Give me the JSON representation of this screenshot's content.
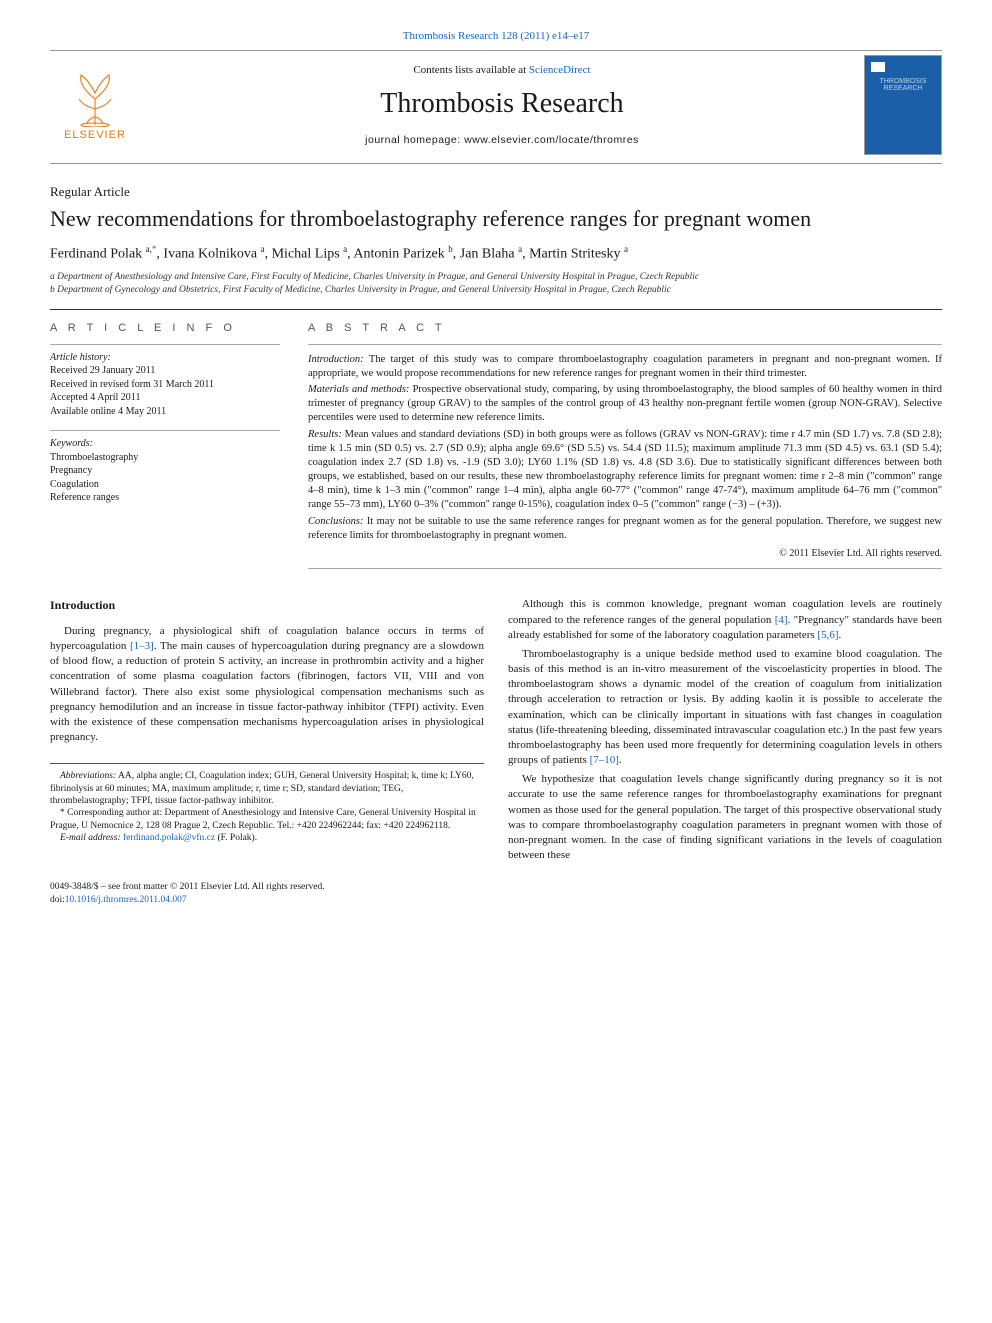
{
  "header": {
    "citation": "Thrombosis Research 128 (2011) e14–e17",
    "contents_prefix": "Contents lists available at ",
    "contents_link": "ScienceDirect",
    "journal": "Thrombosis Research",
    "homepage_prefix": "journal homepage: ",
    "homepage_url": "www.elsevier.com/locate/thromres",
    "publisher_logo_text": "ELSEVIER",
    "cover_label": "THROMBOSIS RESEARCH"
  },
  "article": {
    "type": "Regular Article",
    "title": "New recommendations for thromboelastography reference ranges for pregnant women",
    "authors_html": "Ferdinand Polak <sup>a,</sup><sup class='link'>*</sup>, Ivana Kolnikova <sup>a</sup>, Michal Lips <sup>a</sup>, Antonin Parizek <sup>b</sup>, Jan Blaha <sup>a</sup>, Martin Stritesky <sup>a</sup>",
    "affiliations": [
      "a Department of Anesthesiology and Intensive Care, First Faculty of Medicine, Charles University in Prague, and General University Hospital in Prague, Czech Republic",
      "b Department of Gynecology and Obstetrics, First Faculty of Medicine, Charles University in Prague, and General University Hospital in Prague, Czech Republic"
    ]
  },
  "info": {
    "heading": "A R T I C L E   I N F O",
    "history_label": "Article history:",
    "history": [
      "Received 29 January 2011",
      "Received in revised form 31 March 2011",
      "Accepted 4 April 2011",
      "Available online 4 May 2011"
    ],
    "keywords_label": "Keywords:",
    "keywords": [
      "Thromboelastography",
      "Pregnancy",
      "Coagulation",
      "Reference ranges"
    ]
  },
  "abstract": {
    "heading": "A B S T R A C T",
    "sections": [
      {
        "label": "Introduction:",
        "text": "The target of this study was to compare thromboelastography coagulation parameters in pregnant and non-pregnant women. If appropriate, we would propose recommendations for new reference ranges for pregnant women in their third trimester."
      },
      {
        "label": "Materials and methods:",
        "text": "Prospective observational study, comparing, by using thromboelastography, the blood samples of 60 healthy women in third trimester of pregnancy (group GRAV) to the samples of the control group of 43 healthy non-pregnant fertile women (group NON-GRAV). Selective percentiles were used to determine new reference limits."
      },
      {
        "label": "Results:",
        "text": "Mean values and standard deviations (SD) in both groups were as follows (GRAV vs NON-GRAV): time r 4.7 min (SD 1.7) vs. 7.8 (SD 2.8); time k 1.5 min (SD 0.5) vs. 2.7 (SD 0.9); alpha angle 69.6° (SD 5.5) vs. 54.4 (SD 11.5); maximum amplitude 71.3 mm (SD 4.5) vs. 63.1 (SD 5.4); coagulation index 2.7 (SD 1.8) vs. -1.9 (SD 3.0); LY60 1.1% (SD 1.8) vs. 4.8 (SD 3.6). Due to statistically significant differences between both groups, we established, based on our results, these new thromboelastography reference limits for pregnant women: time r 2–8 min (\"common\" range 4–8 min), time k 1–3 min (\"common\" range 1–4 min), alpha angle 60-77° (\"common\" range 47-74°), maximum amplitude 64–76 mm (\"common\" range 55–73 mm), LY60 0–3% (\"common\" range 0-15%), coagulation index 0–5 (\"common\" range (−3) – (+3))."
      },
      {
        "label": "Conclusions:",
        "text": "It may not be suitable to use the same reference ranges for pregnant women as for the general population. Therefore, we suggest new reference limits for thromboelastography in pregnant women."
      }
    ],
    "copyright": "© 2011 Elsevier Ltd. All rights reserved."
  },
  "body": {
    "intro_head": "Introduction",
    "paras": [
      {
        "text_pre": "During pregnancy, a physiological shift of coagulation balance occurs in terms of hypercoagulation ",
        "cite": "[1–3]",
        "text_post": ". The main causes of hypercoagulation during pregnancy are a slowdown of blood flow, a reduction of protein S activity, an increase in prothrombin activity and a higher concentration of some plasma coagulation factors (fibrinogen, factors VII, VIII and von Willebrand factor). There also exist some physiological compensation mechanisms such as pregnancy hemodilution and an increase in tissue factor-pathway inhibitor (TFPI) activity. Even with the existence of these compensation mechanisms hypercoagulation arises in physiological pregnancy."
      },
      {
        "text_pre": "Although this is common knowledge, pregnant woman coagulation levels are routinely compared to the reference ranges of the general population ",
        "cite": "[4]",
        "text_post": ". \"Pregnancy\" standards have been already established for some of the laboratory coagulation parameters ",
        "cite2": "[5,6]",
        "tail": "."
      },
      {
        "text_pre": "Thromboelastography is a unique bedside method used to examine blood coagulation. The basis of this method is an in-vitro measurement of the viscoelasticity properties in blood. The thromboelastogram shows a dynamic model of the creation of coagulum from initialization through acceleration to retraction or lysis. By adding kaolin it is possible to accelerate the examination, which can be clinically important in situations with fast changes in coagulation status (life-threatening bleeding, disseminated intravascular coagulation etc.) In the past few years thromboelastography has been used more frequently for determining coagulation levels in others groups of patients ",
        "cite": "[7–10]",
        "text_post": "."
      },
      {
        "text_pre": "We hypothesize that coagulation levels change significantly during pregnancy so it is not accurate to use the same reference ranges for thromboelastography examinations for pregnant women as those used for the general population. The target of this prospective observational study was to compare thromboelastography coagulation parameters in pregnant women with those of non-pregnant women. In the case of finding significant variations in the levels of coagulation between these",
        "cite": "",
        "text_post": ""
      }
    ]
  },
  "footnotes": {
    "abbrev_label": "Abbreviations:",
    "abbrev": "AA, alpha angle; CI, Coagulation index; GUH, General University Hospital; k, time k; LY60, fibrinolysis at 60 minutes; MA, maximum amplitude; r, time r; SD, standard deviation; TEG, thrombelastography; TFPI, tissue factor-pathway inhibitor.",
    "corr_label": "* Corresponding author at:",
    "corr": "Department of Anesthesiology and Intensive Care, General University Hospital in Prague, U Nemocnice 2, 128 08 Prague 2, Czech Republic. Tel.: +420 224962244; fax: +420 224962118.",
    "email_label": "E-mail address:",
    "email": "ferdinand.polak@vfn.cz",
    "email_who": "(F. Polak)."
  },
  "bottom": {
    "front_matter": "0049-3848/$ – see front matter © 2011 Elsevier Ltd. All rights reserved.",
    "doi_prefix": "doi:",
    "doi": "10.1016/j.thromres.2011.04.007"
  },
  "colors": {
    "link": "#1565c0",
    "logo_orange": "#e67817",
    "cover_blue": "#1a5fa8",
    "text": "#1a1a1a",
    "rule": "#333333",
    "light_rule": "#aaaaaa"
  },
  "typography": {
    "body_font": "Georgia, 'Times New Roman', serif",
    "journal_title_size_pt": 28,
    "article_title_size_pt": 22,
    "authors_size_pt": 14,
    "body_size_pt": 11,
    "abstract_size_pt": 10.5,
    "footnote_size_pt": 9.5
  }
}
